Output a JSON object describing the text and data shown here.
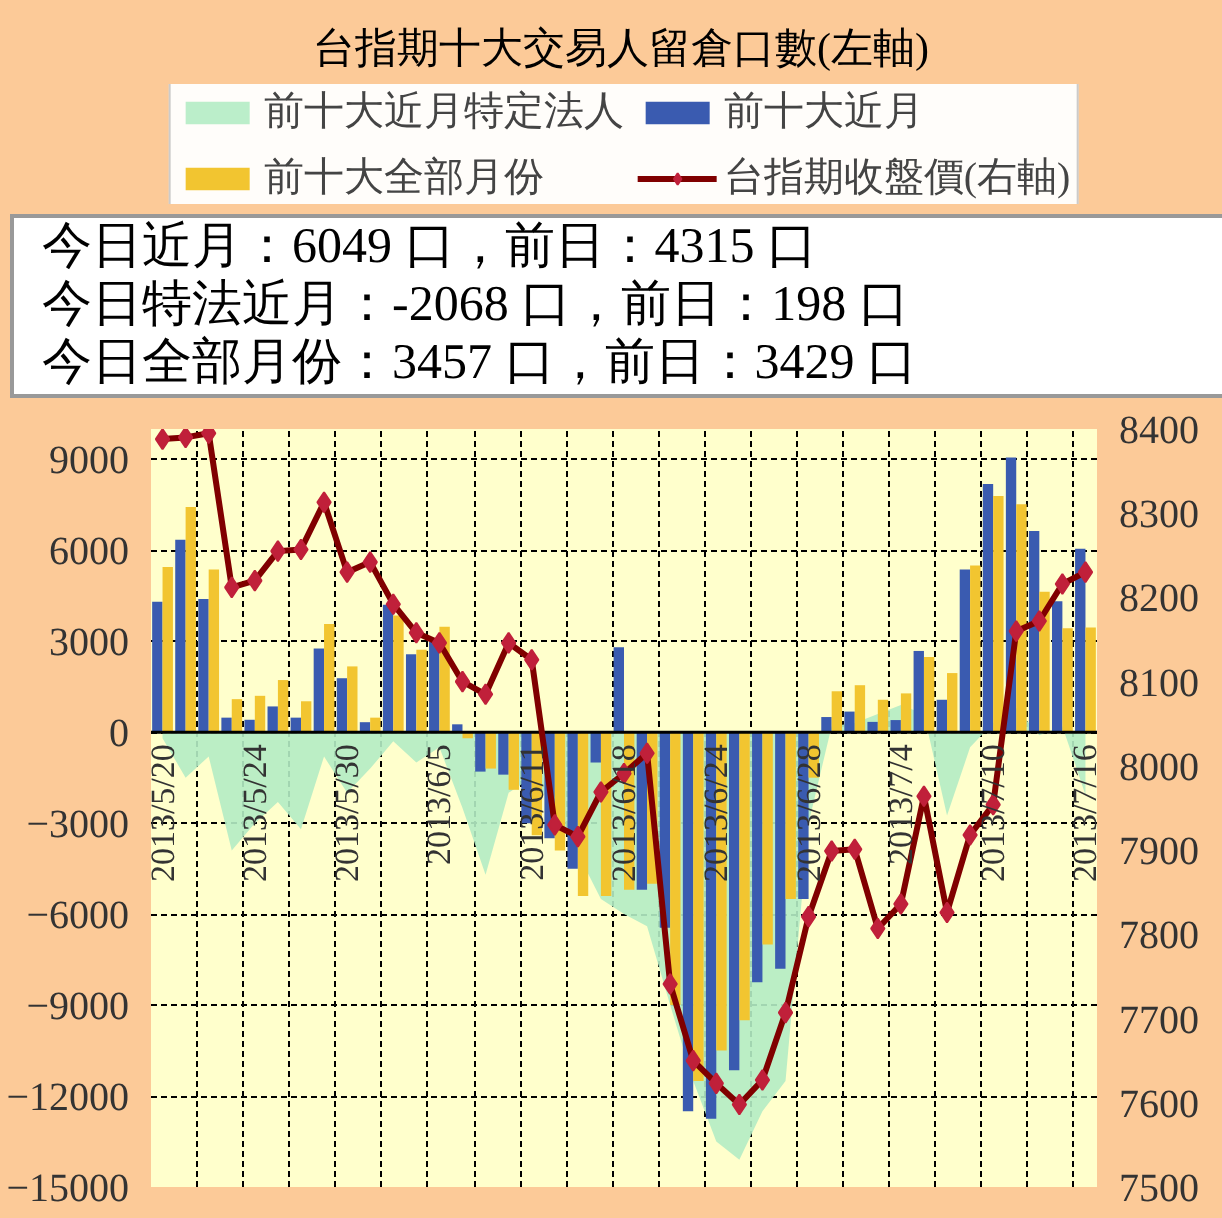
{
  "chart_data": {
    "type": "bar",
    "title": "台指期十大交易人留倉口數(左軸)",
    "annotations": [
      "今日近月：6049 口，前日：4315 口",
      "今日特法近月：-2068 口，前日：198 口",
      "今日全部月份：3457 口，前日：3429 口"
    ],
    "categories": [
      "2013/5/20",
      null,
      null,
      null,
      "2013/5/24",
      null,
      null,
      null,
      "2013/5/30",
      null,
      null,
      null,
      "2013/6/5",
      null,
      null,
      null,
      "2013/6/11",
      null,
      null,
      null,
      "2013/6/18",
      null,
      null,
      null,
      "2013/6/24",
      null,
      null,
      null,
      "2013/6/28",
      null,
      null,
      null,
      "2013/7/4",
      null,
      null,
      null,
      "2013/7/10",
      null,
      null,
      null,
      "2013/7/16"
    ],
    "series": [
      {
        "name": "前十大近月特定法人",
        "type": "area",
        "color": "#b4ecc4",
        "values": [
          -200,
          -1500,
          -800,
          -3900,
          -3000,
          -2300,
          -3200,
          -800,
          -2000,
          -1200,
          -300,
          -1000,
          -500,
          -2500,
          -4700,
          -2000,
          -1500,
          -2500,
          -4000,
          -5500,
          -6000,
          -6400,
          -9000,
          -11500,
          -13500,
          -14100,
          -12500,
          -11500,
          -3000,
          200,
          300,
          600,
          900,
          600,
          -2750,
          -500,
          300,
          800,
          -100,
          198,
          -2068
        ]
      },
      {
        "name": "前十大近月",
        "color": "#3a5bb0",
        "values": [
          4300,
          6350,
          4390,
          480,
          410,
          850,
          480,
          2760,
          1780,
          330,
          4200,
          2570,
          2980,
          260,
          -1300,
          -1400,
          -3000,
          -3500,
          -4500,
          -1000,
          2800,
          -5200,
          -6450,
          -12500,
          -12750,
          -11150,
          -8250,
          -7800,
          -5500,
          500,
          680,
          340,
          400,
          2680,
          1070,
          5370,
          8190,
          9060,
          6640,
          4315,
          6049
        ]
      },
      {
        "name": "前十大全部月份",
        "color": "#f2c530",
        "values": [
          5450,
          7430,
          5370,
          1090,
          1200,
          1720,
          1020,
          3570,
          2170,
          480,
          3850,
          2720,
          3480,
          -200,
          -1200,
          -1900,
          -3400,
          -3900,
          -5400,
          -5400,
          -5200,
          -5000,
          -9000,
          -11500,
          -10500,
          -9500,
          -7000,
          -5500,
          -1500,
          1350,
          1550,
          1070,
          1280,
          2480,
          1950,
          5500,
          7790,
          7520,
          4630,
          3429,
          3457
        ]
      },
      {
        "name": "台指期收盤價(右軸)",
        "type": "line",
        "axis": "y2",
        "marker": "diamond",
        "color": "#800000",
        "values": [
          8388,
          8390,
          8395,
          8212,
          8220,
          8255,
          8257,
          8313,
          8230,
          8242,
          8192,
          8158,
          8146,
          8100,
          8085,
          8146,
          8126,
          7930,
          7916,
          7969,
          7991,
          8015,
          7741,
          7650,
          7623,
          7598,
          7627,
          7707,
          7821,
          7899,
          7901,
          7807,
          7836,
          7964,
          7826,
          7918,
          7954,
          8160,
          8172,
          8216,
          8230
        ]
      }
    ],
    "ylim": [
      -15000,
      10000
    ],
    "yticks": [
      -15000,
      -12000,
      -9000,
      -6000,
      -3000,
      0,
      3000,
      6000,
      9000
    ],
    "y2lim": [
      7500,
      8400
    ],
    "y2ticks": [
      7500,
      7600,
      7700,
      7800,
      7900,
      8000,
      8100,
      8200,
      8300,
      8400
    ],
    "grid": true,
    "legend": "top",
    "line_style": "solid"
  }
}
